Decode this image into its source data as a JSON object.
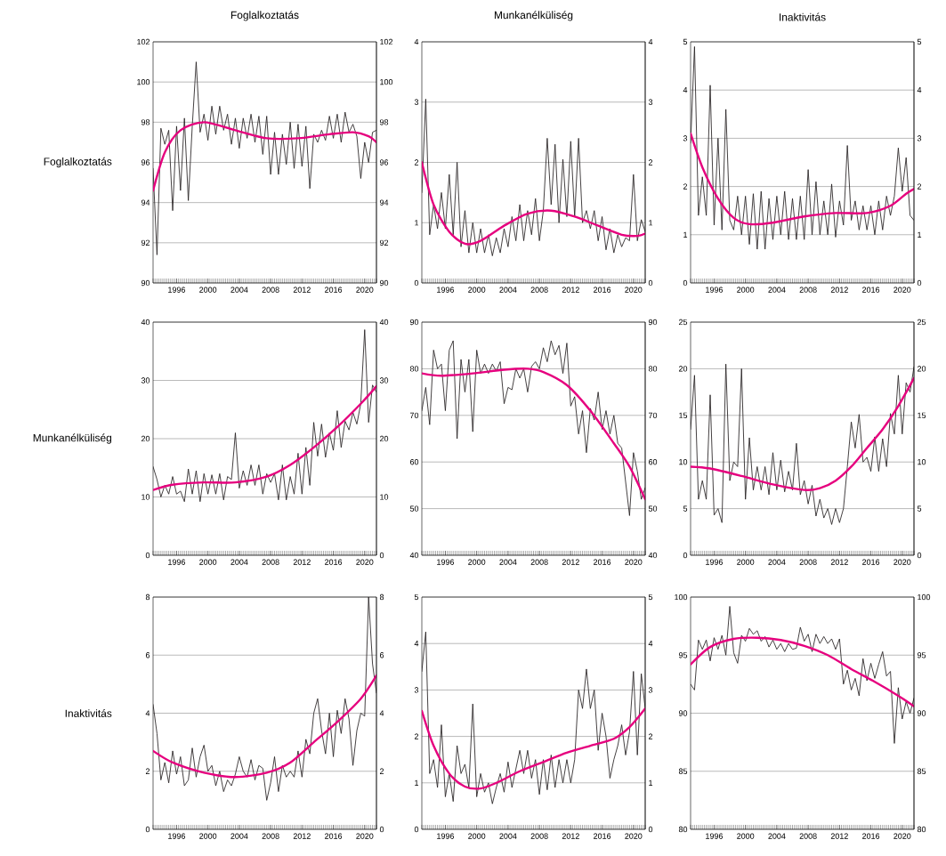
{
  "chart_data": [
    {
      "type": "line",
      "title": "Foglalkoztatás",
      "ylabel": "Foglalkoztatás",
      "grid": "y",
      "x": [
        1993,
        1993.5,
        1994,
        1994.5,
        1995,
        1995.5,
        1996,
        1996.5,
        1997,
        1997.5,
        1998,
        1998.5,
        1999,
        1999.5,
        2000,
        2000.5,
        2001,
        2001.5,
        2002,
        2002.5,
        2003,
        2003.5,
        2004,
        2004.5,
        2005,
        2005.5,
        2006,
        2006.5,
        2007,
        2007.5,
        2008,
        2008.5,
        2009,
        2009.5,
        2010,
        2010.5,
        2011,
        2011.5,
        2012,
        2012.5,
        2013,
        2013.5,
        2014,
        2014.5,
        2015,
        2015.5,
        2016,
        2016.5,
        2017,
        2017.5,
        2018,
        2018.5,
        2019,
        2019.5,
        2020,
        2020.5,
        2021,
        2021.5
      ],
      "xlim": [
        1993,
        2021.5
      ],
      "xticks": [
        1996,
        2000,
        2004,
        2008,
        2012,
        2016,
        2020
      ],
      "ylim": [
        90,
        102
      ],
      "yticks": [
        90,
        92,
        94,
        96,
        98,
        100,
        102
      ],
      "y2lim": [
        90,
        102
      ],
      "y2ticks": [
        90,
        92,
        94,
        96,
        98,
        100,
        102
      ],
      "series": [
        {
          "color": "#231f20",
          "values": [
            95.7,
            91.4,
            97.7,
            96.9,
            97.6,
            93.6,
            97.8,
            94.6,
            98.2,
            94.1,
            97.8,
            101.0,
            97.5,
            98.4,
            97.1,
            98.8,
            97.4,
            98.8,
            97.6,
            98.4,
            96.9,
            98.2,
            96.7,
            98.2,
            97.2,
            98.4,
            97.0,
            98.3,
            96.4,
            98.3,
            95.4,
            97.5,
            95.4,
            97.4,
            95.9,
            98.0,
            95.7,
            97.9,
            95.8,
            97.8,
            94.7,
            97.4,
            97.0,
            97.6,
            97.1,
            98.3,
            97.2,
            98.4,
            97.0,
            98.5,
            97.5,
            97.9,
            97.3,
            95.2,
            97.0,
            96.0,
            97.5,
            97.6
          ]
        },
        {
          "color": "#e6007e",
          "x": [
            1993,
            1994.5,
            1996.5,
            1999.5,
            2003.5,
            2007.5,
            2011.5,
            2015.5,
            2018.5,
            2020.5,
            2021.5
          ],
          "values": [
            94.6,
            96.5,
            97.6,
            98.0,
            97.6,
            97.2,
            97.2,
            97.4,
            97.5,
            97.3,
            97.0
          ]
        }
      ]
    },
    {
      "type": "line",
      "title": "Munkanélküliség",
      "grid": "y",
      "x": [
        1993,
        1993.5,
        1994,
        1994.5,
        1995,
        1995.5,
        1996,
        1996.5,
        1997,
        1997.5,
        1998,
        1998.5,
        1999,
        1999.5,
        2000,
        2000.5,
        2001,
        2001.5,
        2002,
        2002.5,
        2003,
        2003.5,
        2004,
        2004.5,
        2005,
        2005.5,
        2006,
        2006.5,
        2007,
        2007.5,
        2008,
        2008.5,
        2009,
        2009.5,
        2010,
        2010.5,
        2011,
        2011.5,
        2012,
        2012.5,
        2013,
        2013.5,
        2014,
        2014.5,
        2015,
        2015.5,
        2016,
        2016.5,
        2017,
        2017.5,
        2018,
        2018.5,
        2019,
        2019.5,
        2020,
        2020.5,
        2021,
        2021.5
      ],
      "xlim": [
        1993,
        2021.5
      ],
      "xticks": [
        1996,
        2000,
        2004,
        2008,
        2012,
        2016,
        2020
      ],
      "ylim": [
        0,
        4
      ],
      "yticks": [
        0,
        1,
        2,
        3,
        4
      ],
      "y2lim": [
        0,
        4
      ],
      "y2ticks": [
        0,
        1,
        2,
        3,
        4
      ],
      "series": [
        {
          "color": "#231f20",
          "values": [
            1.5,
            3.05,
            0.8,
            1.3,
            0.9,
            1.5,
            0.9,
            1.8,
            0.8,
            2.0,
            0.6,
            1.2,
            0.5,
            1.0,
            0.5,
            0.9,
            0.5,
            0.8,
            0.45,
            0.75,
            0.5,
            0.9,
            0.6,
            1.1,
            0.7,
            1.3,
            0.7,
            1.2,
            0.8,
            1.4,
            0.7,
            1.2,
            2.4,
            1.3,
            2.3,
            1.0,
            2.05,
            1.1,
            2.35,
            1.1,
            2.4,
            1.0,
            1.2,
            0.9,
            1.2,
            0.7,
            1.1,
            0.55,
            0.9,
            0.5,
            0.8,
            0.6,
            0.75,
            0.7,
            1.8,
            0.7,
            1.05,
            0.85
          ]
        },
        {
          "color": "#e6007e",
          "x": [
            1993,
            1994.5,
            1996.5,
            1998.5,
            2000.5,
            2003.5,
            2006.5,
            2009.5,
            2012.5,
            2015.5,
            2018.5,
            2020.5,
            2021.5
          ],
          "values": [
            2.0,
            1.3,
            0.85,
            0.65,
            0.7,
            0.95,
            1.15,
            1.2,
            1.1,
            0.95,
            0.8,
            0.78,
            0.82
          ]
        }
      ]
    },
    {
      "type": "line",
      "title": "Inaktivitás",
      "grid": "y",
      "x": [
        1993,
        1993.5,
        1994,
        1994.5,
        1995,
        1995.5,
        1996,
        1996.5,
        1997,
        1997.5,
        1998,
        1998.5,
        1999,
        1999.5,
        2000,
        2000.5,
        2001,
        2001.5,
        2002,
        2002.5,
        2003,
        2003.5,
        2004,
        2004.5,
        2005,
        2005.5,
        2006,
        2006.5,
        2007,
        2007.5,
        2008,
        2008.5,
        2009,
        2009.5,
        2010,
        2010.5,
        2011,
        2011.5,
        2012,
        2012.5,
        2013,
        2013.5,
        2014,
        2014.5,
        2015,
        2015.5,
        2016,
        2016.5,
        2017,
        2017.5,
        2018,
        2018.5,
        2019,
        2019.5,
        2020,
        2020.5,
        2021,
        2021.5
      ],
      "xlim": [
        1993,
        2021.5
      ],
      "xticks": [
        1996,
        2000,
        2004,
        2008,
        2012,
        2016,
        2020
      ],
      "ylim": [
        0,
        5
      ],
      "yticks": [
        0,
        1,
        2,
        3,
        4,
        5
      ],
      "y2lim": [
        0,
        5
      ],
      "y2ticks": [
        0,
        1,
        2,
        3,
        4,
        5
      ],
      "series": [
        {
          "color": "#231f20",
          "values": [
            2.9,
            4.9,
            1.4,
            2.2,
            1.4,
            4.1,
            1.2,
            3.0,
            1.1,
            3.6,
            1.3,
            1.1,
            1.8,
            1.0,
            1.8,
            0.8,
            1.85,
            0.7,
            1.9,
            0.7,
            1.75,
            0.9,
            1.8,
            1.0,
            1.9,
            0.9,
            1.75,
            0.9,
            1.8,
            0.9,
            2.35,
            1.0,
            2.1,
            1.0,
            1.7,
            1.0,
            2.05,
            0.95,
            1.7,
            1.2,
            2.85,
            1.3,
            1.7,
            1.1,
            1.6,
            1.1,
            1.6,
            1.0,
            1.7,
            1.1,
            1.8,
            1.4,
            1.8,
            2.8,
            1.9,
            2.6,
            1.4,
            1.3
          ]
        },
        {
          "color": "#e6007e",
          "x": [
            1993,
            1994.5,
            1996.5,
            1998.5,
            2000.5,
            2003.5,
            2007.5,
            2011.5,
            2015.5,
            2018.5,
            2020.5,
            2021.5
          ],
          "values": [
            3.1,
            2.4,
            1.75,
            1.35,
            1.22,
            1.25,
            1.38,
            1.45,
            1.45,
            1.6,
            1.85,
            1.95
          ]
        }
      ]
    },
    {
      "type": "line",
      "ylabel": "Munkanélküliség",
      "grid": "y",
      "x": [
        1993,
        1993.5,
        1994,
        1994.5,
        1995,
        1995.5,
        1996,
        1996.5,
        1997,
        1997.5,
        1998,
        1998.5,
        1999,
        1999.5,
        2000,
        2000.5,
        2001,
        2001.5,
        2002,
        2002.5,
        2003,
        2003.5,
        2004,
        2004.5,
        2005,
        2005.5,
        2006,
        2006.5,
        2007,
        2007.5,
        2008,
        2008.5,
        2009,
        2009.5,
        2010,
        2010.5,
        2011,
        2011.5,
        2012,
        2012.5,
        2013,
        2013.5,
        2014,
        2014.5,
        2015,
        2015.5,
        2016,
        2016.5,
        2017,
        2017.5,
        2018,
        2018.5,
        2019,
        2019.5,
        2020,
        2020.5,
        2021,
        2021.5
      ],
      "xlim": [
        1993,
        2021.5
      ],
      "xticks": [
        1996,
        2000,
        2004,
        2008,
        2012,
        2016,
        2020
      ],
      "ylim": [
        0,
        40
      ],
      "yticks": [
        0,
        10,
        20,
        30,
        40
      ],
      "y2lim": [
        0,
        40
      ],
      "y2ticks": [
        0,
        10,
        20,
        30,
        40
      ],
      "series": [
        {
          "color": "#231f20",
          "values": [
            15.2,
            13,
            10,
            12,
            10.5,
            13.5,
            10.5,
            11,
            9.2,
            14.8,
            10.5,
            14.5,
            9.2,
            14,
            10.5,
            13.8,
            10.5,
            14,
            9.5,
            13.5,
            13,
            21,
            11.5,
            14.5,
            12,
            15.5,
            12,
            15.5,
            10.5,
            14,
            12.5,
            14,
            9.5,
            15.5,
            9.5,
            13.5,
            10.5,
            17.5,
            10.5,
            18.5,
            12,
            22.8,
            17,
            22.5,
            16.8,
            21,
            18,
            24.8,
            18.5,
            23,
            21.5,
            24.5,
            22.5,
            26,
            38.7,
            22.8,
            29.2,
            28
          ]
        },
        {
          "color": "#e6007e",
          "x": [
            1993,
            1995.5,
            1999.5,
            2003.5,
            2007.5,
            2010.5,
            2013.5,
            2016.5,
            2019.5,
            2021.5
          ],
          "values": [
            11.2,
            12.1,
            12.5,
            12.5,
            13.5,
            15.5,
            18.5,
            22,
            26,
            29
          ]
        }
      ]
    },
    {
      "type": "line",
      "grid": "y",
      "x": [
        1993,
        1993.5,
        1994,
        1994.5,
        1995,
        1995.5,
        1996,
        1996.5,
        1997,
        1997.5,
        1998,
        1998.5,
        1999,
        1999.5,
        2000,
        2000.5,
        2001,
        2001.5,
        2002,
        2002.5,
        2003,
        2003.5,
        2004,
        2004.5,
        2005,
        2005.5,
        2006,
        2006.5,
        2007,
        2007.5,
        2008,
        2008.5,
        2009,
        2009.5,
        2010,
        2010.5,
        2011,
        2011.5,
        2012,
        2012.5,
        2013,
        2013.5,
        2014,
        2014.5,
        2015,
        2015.5,
        2016,
        2016.5,
        2017,
        2017.5,
        2018,
        2018.5,
        2019,
        2019.5,
        2020,
        2020.5,
        2021,
        2021.5
      ],
      "xlim": [
        1993,
        2021.5
      ],
      "xticks": [
        1996,
        2000,
        2004,
        2008,
        2012,
        2016,
        2020
      ],
      "ylim": [
        40,
        90
      ],
      "yticks": [
        40,
        50,
        60,
        70,
        80,
        90
      ],
      "y2lim": [
        40,
        90
      ],
      "y2ticks": [
        40,
        50,
        60,
        70,
        80,
        90
      ],
      "series": [
        {
          "color": "#231f20",
          "values": [
            71,
            76,
            68,
            84,
            80,
            81,
            71,
            84,
            86,
            65,
            82,
            75,
            82,
            66.5,
            84,
            79,
            81,
            79,
            81,
            79.5,
            81.5,
            72.5,
            76,
            75.5,
            80,
            78,
            80,
            75,
            80.5,
            81.5,
            80,
            84.5,
            81.5,
            86,
            83,
            85,
            79,
            85.5,
            72,
            74,
            66,
            71,
            62,
            71.5,
            69,
            75,
            67,
            71,
            66,
            70,
            64,
            63,
            null,
            48.5,
            62,
            58,
            52,
            54.5
          ]
        },
        {
          "color": "#e6007e",
          "x": [
            1993,
            1995.5,
            1999.5,
            2003.5,
            2006.5,
            2008.5,
            2011.5,
            2014.5,
            2017.5,
            2019.5,
            2021.5
          ],
          "values": [
            79,
            78.5,
            79,
            79.8,
            80,
            79.3,
            76.5,
            71,
            64,
            59,
            52
          ]
        }
      ]
    },
    {
      "type": "line",
      "grid": "y",
      "x": [
        1993,
        1993.5,
        1994,
        1994.5,
        1995,
        1995.5,
        1996,
        1996.5,
        1997,
        1997.5,
        1998,
        1998.5,
        1999,
        1999.5,
        2000,
        2000.5,
        2001,
        2001.5,
        2002,
        2002.5,
        2003,
        2003.5,
        2004,
        2004.5,
        2005,
        2005.5,
        2006,
        2006.5,
        2007,
        2007.5,
        2008,
        2008.5,
        2009,
        2009.5,
        2010,
        2010.5,
        2011,
        2011.5,
        2012,
        2012.5,
        2013,
        2013.5,
        2014,
        2014.5,
        2015,
        2015.5,
        2016,
        2016.5,
        2017,
        2017.5,
        2018,
        2018.5,
        2019,
        2019.5,
        2020,
        2020.5,
        2021,
        2021.5
      ],
      "xlim": [
        1993,
        2021.5
      ],
      "xticks": [
        1996,
        2000,
        2004,
        2008,
        2012,
        2016,
        2020
      ],
      "ylim": [
        0,
        25
      ],
      "yticks": [
        0,
        5,
        10,
        15,
        20,
        25
      ],
      "y2lim": [
        0,
        25
      ],
      "y2ticks": [
        0,
        5,
        10,
        15,
        20,
        25
      ],
      "series": [
        {
          "color": "#231f20",
          "values": [
            13.5,
            19.3,
            6,
            8,
            6,
            17.2,
            4.3,
            5,
            3.5,
            20.5,
            8,
            10,
            9.5,
            20,
            6,
            12.6,
            7,
            9.5,
            7,
            9.5,
            6.5,
            11,
            7,
            10.2,
            6.8,
            9,
            7,
            12,
            6.5,
            8,
            5.5,
            7.5,
            4.2,
            6,
            4,
            5,
            3.3,
            5,
            3.5,
            5,
            9.5,
            14.3,
            11.5,
            15.1,
            10,
            10.5,
            9,
            12.7,
            9,
            12.5,
            9.5,
            15.2,
            13,
            19.3,
            13,
            18.5,
            17.5,
            20.2
          ]
        },
        {
          "color": "#e6007e",
          "x": [
            1993,
            1995.5,
            1999.5,
            2003.5,
            2007.5,
            2009.5,
            2011.5,
            2013.5,
            2015.5,
            2017.5,
            2019.5,
            2021.5
          ],
          "values": [
            9.5,
            9.3,
            8.5,
            7.6,
            7.0,
            7.2,
            8.0,
            9.5,
            11.5,
            13.5,
            16,
            19
          ]
        }
      ]
    },
    {
      "type": "line",
      "ylabel": "Inaktivitás",
      "grid": "y",
      "x": [
        1993,
        1993.5,
        1994,
        1994.5,
        1995,
        1995.5,
        1996,
        1996.5,
        1997,
        1997.5,
        1998,
        1998.5,
        1999,
        1999.5,
        2000,
        2000.5,
        2001,
        2001.5,
        2002,
        2002.5,
        2003,
        2003.5,
        2004,
        2004.5,
        2005,
        2005.5,
        2006,
        2006.5,
        2007,
        2007.5,
        2008,
        2008.5,
        2009,
        2009.5,
        2010,
        2010.5,
        2011,
        2011.5,
        2012,
        2012.5,
        2013,
        2013.5,
        2014,
        2014.5,
        2015,
        2015.5,
        2016,
        2016.5,
        2017,
        2017.5,
        2018,
        2018.5,
        2019,
        2019.5,
        2020,
        2020.5,
        2021,
        2021.5
      ],
      "xlim": [
        1993,
        2021.5
      ],
      "xticks": [
        1996,
        2000,
        2004,
        2008,
        2012,
        2016,
        2020
      ],
      "ylim": [
        0,
        8
      ],
      "yticks": [
        0,
        2,
        4,
        6,
        8
      ],
      "y2lim": [
        0,
        8
      ],
      "y2ticks": [
        0,
        2,
        4,
        6,
        8
      ],
      "series": [
        {
          "color": "#231f20",
          "values": [
            4.3,
            3.3,
            1.7,
            2.3,
            1.6,
            2.7,
            1.9,
            2.5,
            1.5,
            1.7,
            2.8,
            1.8,
            2.5,
            2.9,
            2.0,
            2.2,
            1.5,
            2.0,
            1.3,
            1.7,
            1.5,
            1.9,
            2.5,
            2.0,
            1.8,
            2.4,
            1.7,
            2.2,
            2.1,
            1.0,
            1.6,
            2.5,
            1.3,
            2.2,
            1.8,
            2.0,
            1.8,
            2.7,
            1.8,
            3.1,
            2.6,
            4.0,
            4.5,
            3.4,
            2.6,
            4.0,
            2.5,
            4.1,
            3.3,
            4.5,
            3.8,
            2.2,
            3.4,
            4.0,
            3.9,
            8.0,
            5.7,
            4.7
          ]
        },
        {
          "color": "#e6007e",
          "x": [
            1993,
            1995.5,
            1999.5,
            2003.5,
            2007.5,
            2010.5,
            2013.5,
            2016.5,
            2019.5,
            2021.5
          ],
          "values": [
            2.7,
            2.3,
            1.95,
            1.8,
            1.95,
            2.3,
            3.0,
            3.7,
            4.5,
            5.3
          ]
        }
      ]
    },
    {
      "type": "line",
      "grid": "y",
      "x": [
        1993,
        1993.5,
        1994,
        1994.5,
        1995,
        1995.5,
        1996,
        1996.5,
        1997,
        1997.5,
        1998,
        1998.5,
        1999,
        1999.5,
        2000,
        2000.5,
        2001,
        2001.5,
        2002,
        2002.5,
        2003,
        2003.5,
        2004,
        2004.5,
        2005,
        2005.5,
        2006,
        2006.5,
        2007,
        2007.5,
        2008,
        2008.5,
        2009,
        2009.5,
        2010,
        2010.5,
        2011,
        2011.5,
        2012,
        2012.5,
        2013,
        2013.5,
        2014,
        2014.5,
        2015,
        2015.5,
        2016,
        2016.5,
        2017,
        2017.5,
        2018,
        2018.5,
        2019,
        2019.5,
        2020,
        2020.5,
        2021,
        2021.5
      ],
      "xlim": [
        1993,
        2021.5
      ],
      "xticks": [
        1996,
        2000,
        2004,
        2008,
        2012,
        2016,
        2020
      ],
      "ylim": [
        0,
        5
      ],
      "yticks": [
        0,
        1,
        2,
        3,
        4,
        5
      ],
      "y2lim": [
        0,
        5
      ],
      "y2ticks": [
        0,
        1,
        2,
        3,
        4,
        5
      ],
      "series": [
        {
          "color": "#231f20",
          "values": [
            3.4,
            4.25,
            1.2,
            1.5,
            0.9,
            2.25,
            0.7,
            1.2,
            0.6,
            1.8,
            1.2,
            1.4,
            0.9,
            2.7,
            0.7,
            1.2,
            0.8,
            1.0,
            0.55,
            0.9,
            1.2,
            0.8,
            1.45,
            0.9,
            1.3,
            1.7,
            1.2,
            1.7,
            1.1,
            1.5,
            0.75,
            1.5,
            0.85,
            1.6,
            0.9,
            1.5,
            1.0,
            1.5,
            1.0,
            1.5,
            3.0,
            2.6,
            3.45,
            2.6,
            3.0,
            1.7,
            2.5,
            2.0,
            1.1,
            1.5,
            1.8,
            2.25,
            1.6,
            2.1,
            3.4,
            1.6,
            3.35,
            2.6
          ]
        },
        {
          "color": "#e6007e",
          "x": [
            1993,
            1994.5,
            1996.5,
            1998.5,
            2000.5,
            2002.5,
            2005.5,
            2008.5,
            2011.5,
            2014.5,
            2017.5,
            2019.5,
            2021.5
          ],
          "values": [
            2.55,
            1.8,
            1.2,
            0.92,
            0.88,
            1.0,
            1.25,
            1.45,
            1.65,
            1.8,
            1.95,
            2.2,
            2.6
          ]
        }
      ]
    },
    {
      "type": "line",
      "grid": "y",
      "x": [
        1993,
        1993.5,
        1994,
        1994.5,
        1995,
        1995.5,
        1996,
        1996.5,
        1997,
        1997.5,
        1998,
        1998.5,
        1999,
        1999.5,
        2000,
        2000.5,
        2001,
        2001.5,
        2002,
        2002.5,
        2003,
        2003.5,
        2004,
        2004.5,
        2005,
        2005.5,
        2006,
        2006.5,
        2007,
        2007.5,
        2008,
        2008.5,
        2009,
        2009.5,
        2010,
        2010.5,
        2011,
        2011.5,
        2012,
        2012.5,
        2013,
        2013.5,
        2014,
        2014.5,
        2015,
        2015.5,
        2016,
        2016.5,
        2017,
        2017.5,
        2018,
        2018.5,
        2019,
        2019.5,
        2020,
        2020.5,
        2021,
        2021.5
      ],
      "xlim": [
        1993,
        2021.5
      ],
      "xticks": [
        1996,
        2000,
        2004,
        2008,
        2012,
        2016,
        2020
      ],
      "ylim": [
        80,
        100
      ],
      "yticks": [
        80,
        85,
        90,
        95,
        100
      ],
      "y2lim": [
        80,
        100
      ],
      "y2ticks": [
        80,
        85,
        90,
        95,
        100
      ],
      "series": [
        {
          "color": "#231f20",
          "values": [
            92.5,
            92,
            96.3,
            95.5,
            96.3,
            94.5,
            96.5,
            95.5,
            96.7,
            95,
            99.2,
            95.2,
            94.3,
            96.7,
            96.2,
            97.3,
            96.8,
            97.1,
            96.2,
            96.6,
            95.7,
            96.3,
            95.5,
            96,
            95.3,
            96,
            95.5,
            95.6,
            97.4,
            96.2,
            96.8,
            95.3,
            96.8,
            96,
            96.6,
            96,
            96.4,
            95.5,
            96.4,
            92.5,
            93.7,
            92,
            93,
            91.5,
            94.7,
            92.8,
            94.3,
            93,
            94.2,
            95.3,
            93.2,
            93.6,
            87.4,
            92.2,
            89.5,
            91,
            90,
            91.3
          ]
        },
        {
          "color": "#e6007e",
          "x": [
            1993,
            1995.5,
            1998.5,
            2001.5,
            2004.5,
            2007.5,
            2010.5,
            2013.5,
            2016.5,
            2019.5,
            2021.5
          ],
          "values": [
            94.2,
            95.7,
            96.4,
            96.5,
            96.3,
            95.8,
            95.0,
            93.8,
            92.7,
            91.5,
            90.6
          ]
        }
      ]
    }
  ]
}
